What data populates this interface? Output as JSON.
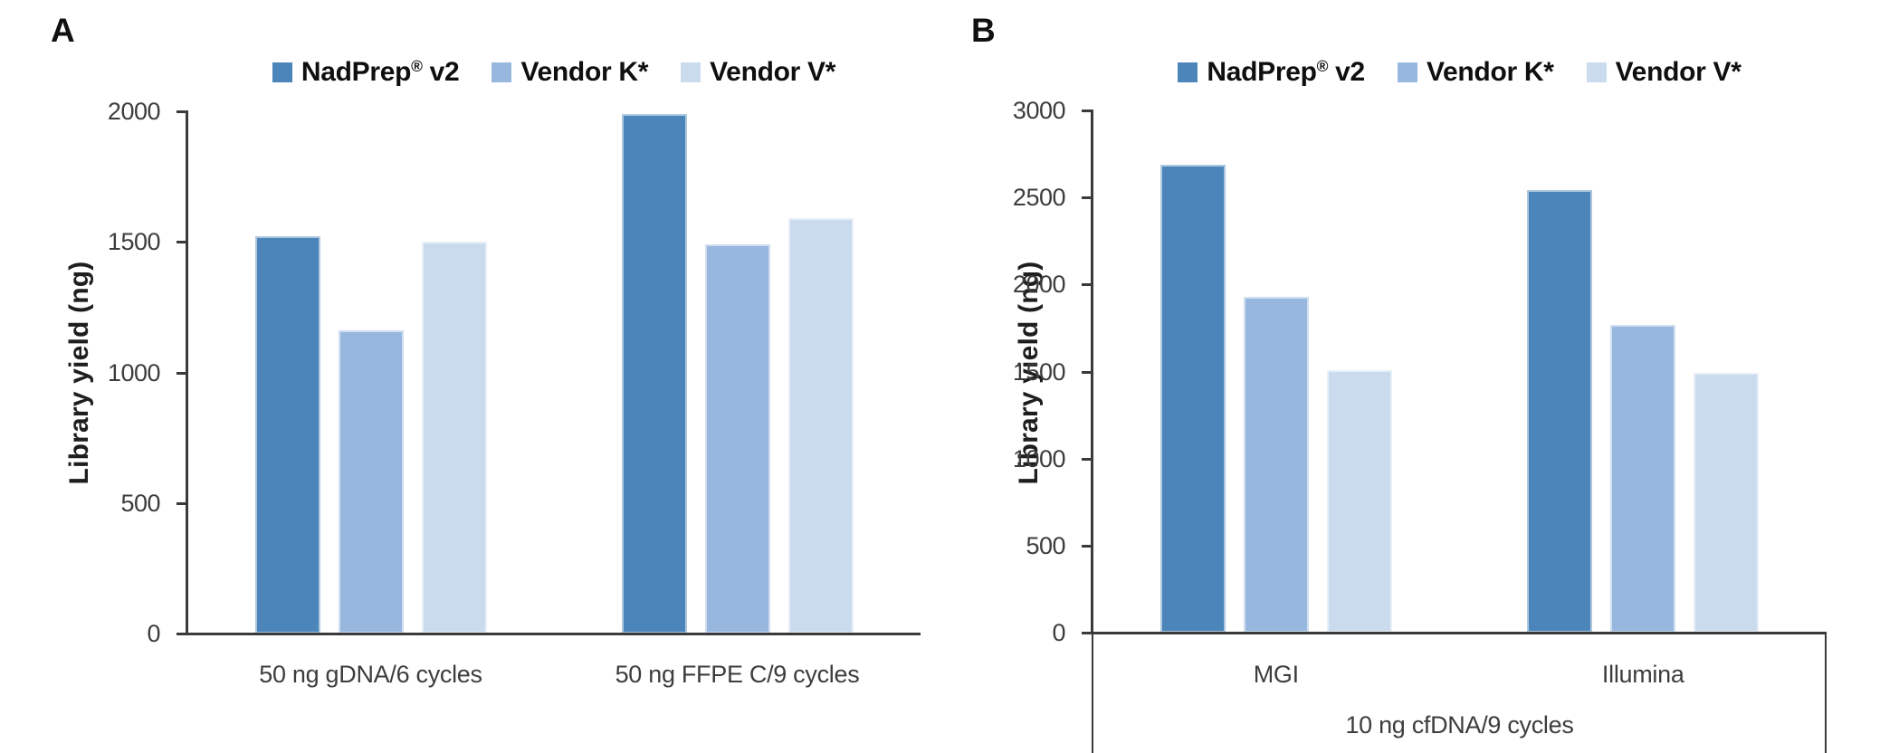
{
  "figure": {
    "background": "#ffffff",
    "axis_color": "#3a3a3a",
    "series_colors": [
      "#4c85b9",
      "#97b7de",
      "#cbdbee"
    ]
  },
  "chart_data": [
    {
      "type": "bar",
      "panel_label": "A",
      "title": "",
      "xlabel": "",
      "ylabel": "Library yield (ng)",
      "ylim": [
        0,
        2000
      ],
      "yticks": [
        0,
        500,
        1000,
        1500,
        2000
      ],
      "categories": [
        "50 ng gDNA/6 cycles",
        "50 ng FFPE C/9 cycles"
      ],
      "series": [
        {
          "name": "NadPrep® v2",
          "color": "#4c85b9",
          "values": [
            1520,
            1990
          ]
        },
        {
          "name": "Vendor K*",
          "color": "#97b7de",
          "values": [
            1160,
            1490
          ]
        },
        {
          "name": "Vendor V*",
          "color": "#cbdbee",
          "values": [
            1500,
            1590
          ]
        }
      ],
      "legend_position": "top",
      "grid": false
    },
    {
      "type": "bar",
      "panel_label": "B",
      "title": "",
      "xlabel": "",
      "ylabel": "Library yield (ng)",
      "ylim": [
        0,
        3000
      ],
      "yticks": [
        0,
        500,
        1000,
        1500,
        2000,
        2500,
        3000
      ],
      "categories": [
        "MGI",
        "Illumina"
      ],
      "category_group_label": "10 ng cfDNA/9 cycles",
      "series": [
        {
          "name": "NadPrep® v2",
          "color": "#4c85b9",
          "values": [
            2690,
            2540
          ]
        },
        {
          "name": "Vendor K*",
          "color": "#97b7de",
          "values": [
            1930,
            1770
          ]
        },
        {
          "name": "Vendor V*",
          "color": "#cbdbee",
          "values": [
            1510,
            1490
          ]
        }
      ],
      "legend_position": "top",
      "grid": false
    }
  ]
}
